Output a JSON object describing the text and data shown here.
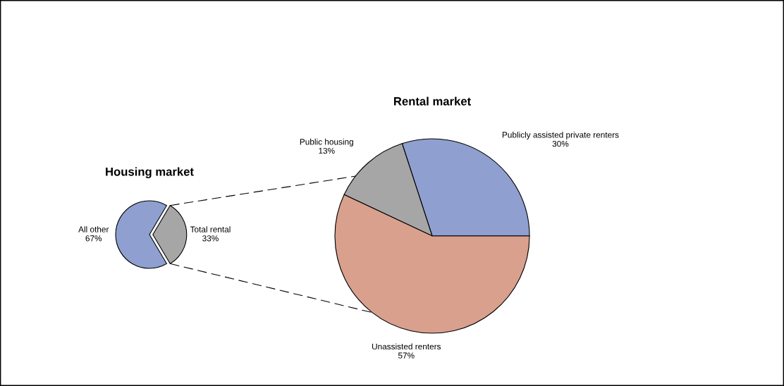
{
  "chart_data": [
    {
      "type": "pie",
      "title": "Housing market",
      "categories": [
        "All other",
        "Total rental"
      ],
      "values": [
        67,
        33
      ],
      "value_labels": [
        "67%",
        "33%"
      ],
      "colors": [
        "#8e9fd0",
        "#a6a6a6"
      ]
    },
    {
      "type": "pie",
      "title": "Rental market",
      "categories": [
        "Publicly assisted private renters",
        "Public housing",
        "Unassisted renters"
      ],
      "values": [
        30,
        13,
        57
      ],
      "value_labels": [
        "30%",
        "13%",
        "57%"
      ],
      "colors": [
        "#8e9fd0",
        "#a6a6a6",
        "#d9a08e"
      ]
    }
  ]
}
